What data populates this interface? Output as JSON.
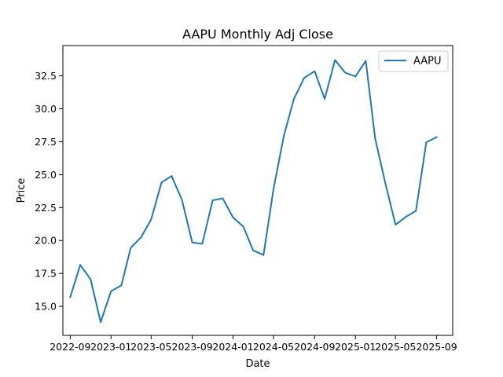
{
  "chart_data": {
    "type": "line",
    "title": "AAPU Monthly Adj Close",
    "xlabel": "Date",
    "ylabel": "Price",
    "x_type": "date",
    "xlim": [
      "2022-08-10",
      "2025-10-19"
    ],
    "ylim": [
      12.8,
      34.8
    ],
    "x_ticks": [
      "2022-09-01",
      "2023-01-01",
      "2023-05-01",
      "2023-09-01",
      "2024-01-01",
      "2024-05-01",
      "2024-09-01",
      "2025-01-01",
      "2025-05-01",
      "2025-09-01"
    ],
    "x_tick_labels": [
      "2022-09",
      "2023-01",
      "2023-05",
      "2023-09",
      "2024-01",
      "2024-05",
      "2024-09",
      "2025-01",
      "2025-05",
      "2025-09"
    ],
    "y_ticks": [
      15.0,
      17.5,
      20.0,
      22.5,
      25.0,
      27.5,
      30.0,
      32.5
    ],
    "y_tick_labels": [
      "15.0",
      "17.5",
      "20.0",
      "22.5",
      "25.0",
      "27.5",
      "30.0",
      "32.5"
    ],
    "grid": false,
    "legend": {
      "position": "top-right",
      "entries": [
        "AAPU"
      ]
    },
    "series": [
      {
        "name": "AAPU",
        "color": "#1f77b4",
        "x": [
          "2022-09-01",
          "2022-10-01",
          "2022-11-01",
          "2022-12-01",
          "2023-01-01",
          "2023-02-01",
          "2023-03-01",
          "2023-04-01",
          "2023-05-01",
          "2023-06-01",
          "2023-07-01",
          "2023-08-01",
          "2023-09-01",
          "2023-10-01",
          "2023-11-01",
          "2023-12-01",
          "2024-01-01",
          "2024-02-01",
          "2024-03-01",
          "2024-04-01",
          "2024-05-01",
          "2024-06-01",
          "2024-07-01",
          "2024-08-01",
          "2024-09-01",
          "2024-10-01",
          "2024-11-01",
          "2024-12-01",
          "2025-01-01",
          "2025-02-01",
          "2025-03-01",
          "2025-04-01",
          "2025-05-01",
          "2025-06-01",
          "2025-07-01",
          "2025-08-01",
          "2025-09-01"
        ],
        "values": [
          15.7,
          18.15,
          17.05,
          13.8,
          16.15,
          16.6,
          19.45,
          20.25,
          21.6,
          24.4,
          24.9,
          23.1,
          19.85,
          19.75,
          23.05,
          23.2,
          21.75,
          21.05,
          19.25,
          18.9,
          23.9,
          27.95,
          30.75,
          32.35,
          32.85,
          30.75,
          33.7,
          32.75,
          32.45,
          33.65,
          27.75,
          24.3,
          21.2,
          21.8,
          22.25,
          27.45,
          27.85
        ]
      }
    ]
  }
}
